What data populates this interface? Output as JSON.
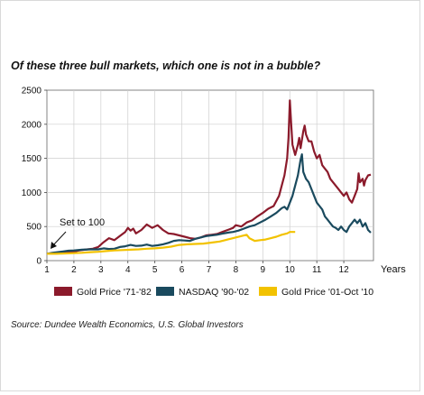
{
  "title": "Of these three bull markets, which one is not in a bubble?",
  "source": "Source:  Dundee Wealth Economics, U.S. Global Investors",
  "chart_data": {
    "type": "line",
    "xlabel": "Years",
    "ylabel": "",
    "xlim": [
      1,
      13.1
    ],
    "ylim": [
      0,
      2500
    ],
    "x_ticks": [
      "1",
      "2",
      "3",
      "4",
      "5",
      "6",
      "7",
      "8",
      "9",
      "10",
      "11",
      "12"
    ],
    "y_ticks": [
      "0",
      "500",
      "1000",
      "1500",
      "2000",
      "2500"
    ],
    "grid": true,
    "legend_position": "bottom",
    "annotations": [
      {
        "text": "Set to 100",
        "x": 1.15,
        "y": 100
      }
    ],
    "series": [
      {
        "name": "Gold Price '71-'82",
        "color": "#8b1a2b",
        "points": [
          [
            1.0,
            100
          ],
          [
            1.3,
            105
          ],
          [
            1.6,
            110
          ],
          [
            1.9,
            125
          ],
          [
            2.2,
            150
          ],
          [
            2.5,
            165
          ],
          [
            2.7,
            175
          ],
          [
            2.9,
            200
          ],
          [
            3.1,
            270
          ],
          [
            3.3,
            330
          ],
          [
            3.5,
            300
          ],
          [
            3.7,
            360
          ],
          [
            3.9,
            420
          ],
          [
            4.0,
            480
          ],
          [
            4.1,
            440
          ],
          [
            4.2,
            470
          ],
          [
            4.3,
            400
          ],
          [
            4.5,
            450
          ],
          [
            4.7,
            530
          ],
          [
            4.9,
            480
          ],
          [
            5.1,
            520
          ],
          [
            5.3,
            450
          ],
          [
            5.5,
            400
          ],
          [
            5.7,
            390
          ],
          [
            5.9,
            370
          ],
          [
            6.1,
            350
          ],
          [
            6.3,
            330
          ],
          [
            6.5,
            320
          ],
          [
            6.7,
            340
          ],
          [
            6.9,
            370
          ],
          [
            7.1,
            380
          ],
          [
            7.3,
            390
          ],
          [
            7.5,
            420
          ],
          [
            7.7,
            450
          ],
          [
            7.9,
            480
          ],
          [
            8.0,
            520
          ],
          [
            8.2,
            500
          ],
          [
            8.4,
            560
          ],
          [
            8.6,
            590
          ],
          [
            8.8,
            650
          ],
          [
            9.0,
            700
          ],
          [
            9.2,
            760
          ],
          [
            9.4,
            800
          ],
          [
            9.6,
            950
          ],
          [
            9.7,
            1100
          ],
          [
            9.8,
            1250
          ],
          [
            9.9,
            1500
          ],
          [
            9.95,
            1800
          ],
          [
            10.0,
            2350
          ],
          [
            10.05,
            2000
          ],
          [
            10.1,
            1700
          ],
          [
            10.2,
            1550
          ],
          [
            10.3,
            1700
          ],
          [
            10.35,
            1800
          ],
          [
            10.4,
            1650
          ],
          [
            10.5,
            1900
          ],
          [
            10.55,
            1980
          ],
          [
            10.6,
            1850
          ],
          [
            10.7,
            1750
          ],
          [
            10.8,
            1750
          ],
          [
            10.9,
            1600
          ],
          [
            11.0,
            1500
          ],
          [
            11.1,
            1550
          ],
          [
            11.2,
            1400
          ],
          [
            11.3,
            1350
          ],
          [
            11.4,
            1300
          ],
          [
            11.5,
            1200
          ],
          [
            11.6,
            1150
          ],
          [
            11.7,
            1100
          ],
          [
            11.8,
            1050
          ],
          [
            11.9,
            1000
          ],
          [
            12.0,
            950
          ],
          [
            12.1,
            1000
          ],
          [
            12.2,
            900
          ],
          [
            12.3,
            850
          ],
          [
            12.4,
            950
          ],
          [
            12.5,
            1050
          ],
          [
            12.55,
            1280
          ],
          [
            12.6,
            1150
          ],
          [
            12.7,
            1200
          ],
          [
            12.75,
            1100
          ],
          [
            12.8,
            1180
          ],
          [
            12.9,
            1250
          ],
          [
            13.0,
            1260
          ]
        ]
      },
      {
        "name": "NASDAQ '90-'02",
        "color": "#1a4a5e",
        "points": [
          [
            1.0,
            100
          ],
          [
            1.2,
            115
          ],
          [
            1.4,
            125
          ],
          [
            1.6,
            135
          ],
          [
            1.8,
            145
          ],
          [
            2.0,
            150
          ],
          [
            2.3,
            160
          ],
          [
            2.6,
            165
          ],
          [
            2.9,
            165
          ],
          [
            3.1,
            180
          ],
          [
            3.3,
            170
          ],
          [
            3.5,
            175
          ],
          [
            3.7,
            200
          ],
          [
            3.9,
            210
          ],
          [
            4.1,
            230
          ],
          [
            4.3,
            215
          ],
          [
            4.5,
            220
          ],
          [
            4.7,
            235
          ],
          [
            4.9,
            215
          ],
          [
            5.1,
            225
          ],
          [
            5.3,
            240
          ],
          [
            5.5,
            260
          ],
          [
            5.7,
            290
          ],
          [
            5.9,
            300
          ],
          [
            6.1,
            295
          ],
          [
            6.3,
            290
          ],
          [
            6.5,
            320
          ],
          [
            6.7,
            340
          ],
          [
            6.9,
            360
          ],
          [
            7.1,
            370
          ],
          [
            7.3,
            380
          ],
          [
            7.5,
            395
          ],
          [
            7.7,
            410
          ],
          [
            7.9,
            420
          ],
          [
            8.1,
            440
          ],
          [
            8.3,
            470
          ],
          [
            8.5,
            500
          ],
          [
            8.7,
            520
          ],
          [
            8.9,
            560
          ],
          [
            9.1,
            600
          ],
          [
            9.3,
            650
          ],
          [
            9.5,
            700
          ],
          [
            9.7,
            770
          ],
          [
            9.8,
            790
          ],
          [
            9.9,
            750
          ],
          [
            10.0,
            850
          ],
          [
            10.1,
            950
          ],
          [
            10.2,
            1100
          ],
          [
            10.3,
            1250
          ],
          [
            10.4,
            1480
          ],
          [
            10.45,
            1560
          ],
          [
            10.5,
            1300
          ],
          [
            10.6,
            1200
          ],
          [
            10.7,
            1150
          ],
          [
            10.8,
            1050
          ],
          [
            10.9,
            950
          ],
          [
            11.0,
            850
          ],
          [
            11.1,
            800
          ],
          [
            11.2,
            750
          ],
          [
            11.3,
            650
          ],
          [
            11.4,
            600
          ],
          [
            11.5,
            550
          ],
          [
            11.6,
            500
          ],
          [
            11.7,
            480
          ],
          [
            11.8,
            450
          ],
          [
            11.9,
            500
          ],
          [
            12.0,
            450
          ],
          [
            12.1,
            420
          ],
          [
            12.2,
            500
          ],
          [
            12.3,
            550
          ],
          [
            12.4,
            600
          ],
          [
            12.5,
            550
          ],
          [
            12.6,
            600
          ],
          [
            12.7,
            500
          ],
          [
            12.8,
            550
          ],
          [
            12.9,
            450
          ],
          [
            13.0,
            410
          ]
        ]
      },
      {
        "name": "Gold Price '01-Oct '10",
        "color": "#f2c200",
        "points": [
          [
            1.0,
            100
          ],
          [
            1.3,
            100
          ],
          [
            1.6,
            105
          ],
          [
            2.0,
            110
          ],
          [
            2.3,
            115
          ],
          [
            2.6,
            125
          ],
          [
            2.9,
            130
          ],
          [
            3.2,
            140
          ],
          [
            3.5,
            150
          ],
          [
            3.8,
            155
          ],
          [
            4.1,
            160
          ],
          [
            4.4,
            165
          ],
          [
            4.7,
            175
          ],
          [
            5.0,
            180
          ],
          [
            5.3,
            190
          ],
          [
            5.6,
            205
          ],
          [
            5.9,
            230
          ],
          [
            6.2,
            240
          ],
          [
            6.5,
            245
          ],
          [
            6.8,
            250
          ],
          [
            7.1,
            265
          ],
          [
            7.4,
            280
          ],
          [
            7.6,
            300
          ],
          [
            7.8,
            320
          ],
          [
            8.0,
            340
          ],
          [
            8.2,
            360
          ],
          [
            8.4,
            380
          ],
          [
            8.5,
            330
          ],
          [
            8.7,
            290
          ],
          [
            8.9,
            300
          ],
          [
            9.1,
            310
          ],
          [
            9.3,
            330
          ],
          [
            9.5,
            350
          ],
          [
            9.7,
            380
          ],
          [
            9.9,
            400
          ],
          [
            10.0,
            420
          ],
          [
            10.2,
            420
          ]
        ]
      }
    ]
  }
}
